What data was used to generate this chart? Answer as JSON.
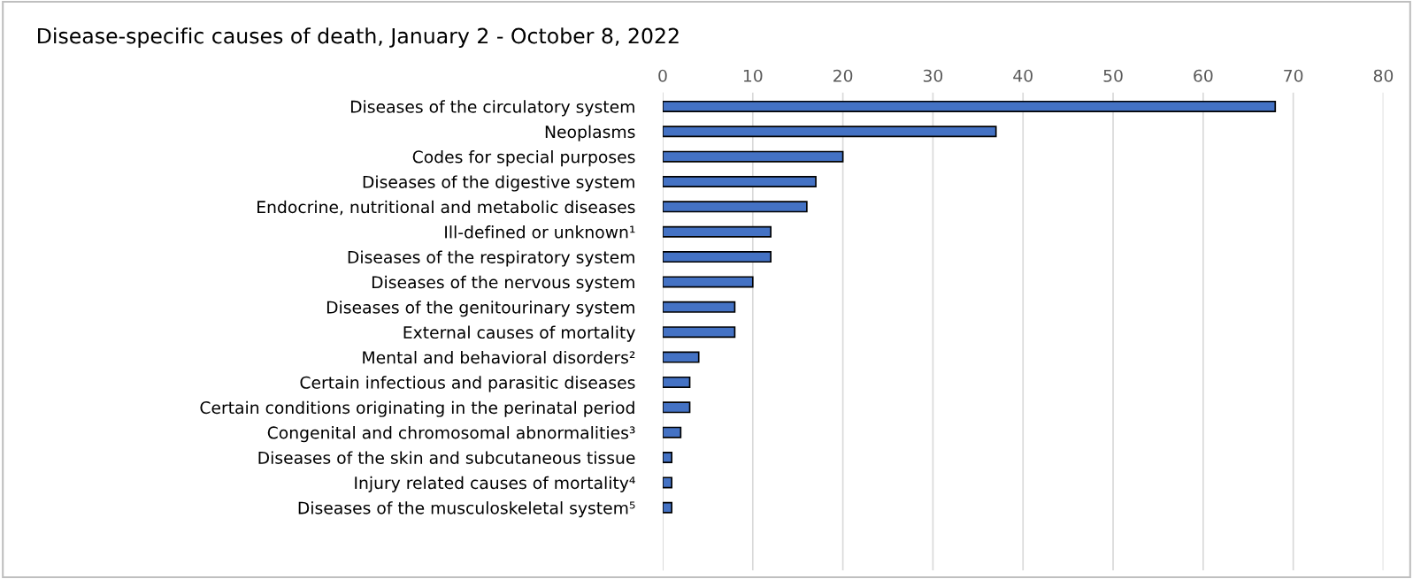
{
  "chart_data": {
    "type": "bar",
    "orientation": "horizontal",
    "title": "Disease-specific causes of death, January 2 - October 8, 2022",
    "categories": [
      "Diseases of the circulatory system",
      "Neoplasms",
      "Codes for special purposes",
      "Diseases of the digestive system",
      "Endocrine, nutritional and metabolic diseases",
      "Ill-defined or unknown¹",
      "Diseases of the respiratory system",
      "Diseases of the nervous system",
      "Diseases of the genitourinary system",
      "External causes of mortality",
      "Mental and behavioral disorders²",
      "Certain infectious and parasitic diseases",
      "Certain conditions originating in the perinatal period",
      "Congenital and chromosomal abnormalities³",
      "Diseases of the skin and subcutaneous tissue",
      "Injury related causes of mortality⁴",
      "Diseases of the musculoskeletal system⁵"
    ],
    "values": [
      68,
      37,
      20,
      17,
      16,
      12,
      12,
      10,
      8,
      8,
      4,
      3,
      3,
      2,
      1,
      1,
      1
    ],
    "color": "#4472c4",
    "xlim": [
      0,
      80
    ],
    "xticks": [
      0,
      10,
      20,
      30,
      40,
      50,
      60,
      70,
      80
    ],
    "grid": "x"
  }
}
